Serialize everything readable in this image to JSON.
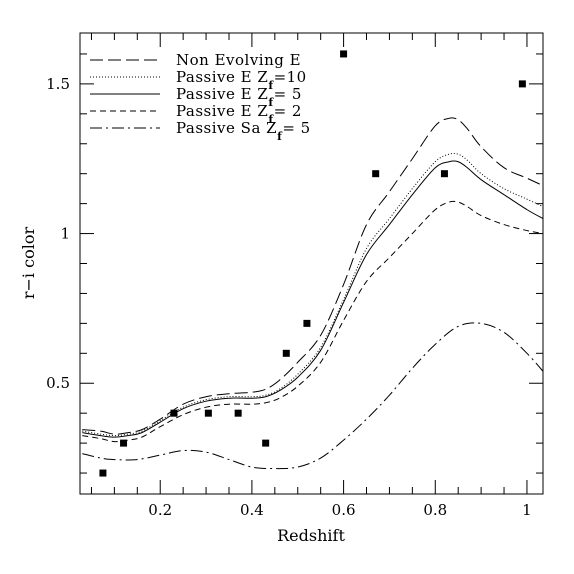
{
  "chart_data": {
    "type": "line",
    "xlabel": "Redshift",
    "ylabel": "r−i color",
    "xlim": [
      0.025,
      1.035
    ],
    "ylim": [
      0.13,
      1.67
    ],
    "x_ticks": [
      0.2,
      0.4,
      0.6,
      0.8,
      1.0
    ],
    "x_tick_labels": [
      "0.2",
      "0.4",
      "0.6",
      "0.8",
      "1"
    ],
    "y_ticks": [
      0.5,
      1.0,
      1.5
    ],
    "y_tick_labels": [
      "0.5",
      "1",
      "1.5"
    ],
    "grid": false,
    "legend_position": "top-left",
    "series": [
      {
        "name": "Non Evolving E",
        "dash": "long-dash",
        "x": [
          0.03,
          0.07,
          0.1,
          0.13,
          0.16,
          0.2,
          0.25,
          0.3,
          0.35,
          0.4,
          0.43,
          0.46,
          0.5,
          0.55,
          0.6,
          0.65,
          0.7,
          0.75,
          0.8,
          0.83,
          0.85,
          0.87,
          0.9,
          0.95,
          1.0,
          1.035
        ],
        "y": [
          0.345,
          0.34,
          0.33,
          0.335,
          0.345,
          0.38,
          0.43,
          0.455,
          0.465,
          0.47,
          0.48,
          0.51,
          0.57,
          0.66,
          0.83,
          1.03,
          1.14,
          1.25,
          1.36,
          1.385,
          1.38,
          1.35,
          1.29,
          1.22,
          1.185,
          1.16
        ]
      },
      {
        "name": "Passive E  Z_f=10",
        "dash": "dotted",
        "x": [
          0.03,
          0.07,
          0.1,
          0.13,
          0.16,
          0.2,
          0.25,
          0.3,
          0.35,
          0.4,
          0.43,
          0.46,
          0.5,
          0.55,
          0.6,
          0.65,
          0.7,
          0.75,
          0.8,
          0.83,
          0.85,
          0.87,
          0.9,
          0.95,
          1.0,
          1.035
        ],
        "y": [
          0.34,
          0.33,
          0.325,
          0.33,
          0.34,
          0.375,
          0.42,
          0.445,
          0.455,
          0.455,
          0.46,
          0.48,
          0.53,
          0.62,
          0.78,
          0.95,
          1.05,
          1.15,
          1.24,
          1.265,
          1.265,
          1.245,
          1.2,
          1.15,
          1.115,
          1.09
        ]
      },
      {
        "name": "Passive E  Z_f= 5",
        "dash": "solid",
        "x": [
          0.03,
          0.07,
          0.1,
          0.13,
          0.16,
          0.2,
          0.25,
          0.3,
          0.35,
          0.4,
          0.43,
          0.46,
          0.5,
          0.55,
          0.6,
          0.65,
          0.7,
          0.75,
          0.8,
          0.83,
          0.85,
          0.87,
          0.9,
          0.95,
          1.0,
          1.035
        ],
        "y": [
          0.335,
          0.325,
          0.32,
          0.325,
          0.335,
          0.37,
          0.415,
          0.44,
          0.45,
          0.45,
          0.455,
          0.475,
          0.52,
          0.61,
          0.77,
          0.93,
          1.03,
          1.13,
          1.22,
          1.24,
          1.24,
          1.22,
          1.18,
          1.13,
          1.08,
          1.05
        ]
      },
      {
        "name": "Passive E  Z_f= 2",
        "dash": "short-dash",
        "x": [
          0.03,
          0.07,
          0.1,
          0.13,
          0.16,
          0.2,
          0.25,
          0.3,
          0.35,
          0.4,
          0.43,
          0.46,
          0.5,
          0.55,
          0.6,
          0.65,
          0.7,
          0.75,
          0.8,
          0.83,
          0.85,
          0.87,
          0.9,
          0.95,
          1.0,
          1.035
        ],
        "y": [
          0.325,
          0.315,
          0.305,
          0.31,
          0.32,
          0.355,
          0.395,
          0.42,
          0.43,
          0.43,
          0.435,
          0.45,
          0.49,
          0.57,
          0.71,
          0.84,
          0.92,
          1.0,
          1.08,
          1.105,
          1.105,
          1.09,
          1.06,
          1.03,
          1.01,
          1.0
        ]
      },
      {
        "name": "Passive Sa  Z_f= 5",
        "dash": "dash-dot",
        "x": [
          0.03,
          0.07,
          0.1,
          0.15,
          0.2,
          0.25,
          0.3,
          0.35,
          0.4,
          0.45,
          0.5,
          0.55,
          0.6,
          0.65,
          0.7,
          0.75,
          0.8,
          0.85,
          0.9,
          0.95,
          1.0,
          1.035
        ],
        "y": [
          0.265,
          0.25,
          0.245,
          0.245,
          0.26,
          0.275,
          0.27,
          0.245,
          0.22,
          0.215,
          0.22,
          0.25,
          0.31,
          0.38,
          0.46,
          0.55,
          0.63,
          0.69,
          0.7,
          0.67,
          0.6,
          0.54
        ]
      }
    ],
    "points": {
      "x": [
        0.075,
        0.12,
        0.23,
        0.305,
        0.37,
        0.43,
        0.475,
        0.52,
        0.6,
        0.67,
        0.82,
        0.99
      ],
      "y": [
        0.2,
        0.3,
        0.4,
        0.4,
        0.4,
        0.3,
        0.6,
        0.7,
        1.6,
        1.2,
        1.2,
        1.5
      ]
    },
    "legend": [
      {
        "text": "Non Evolving E",
        "sub": "",
        "after": "",
        "dash": "long-dash"
      },
      {
        "text": "Passive E  Z",
        "sub": "f",
        "after": "=10",
        "dash": "dotted"
      },
      {
        "text": "Passive E  Z",
        "sub": "f",
        "after": "= 5",
        "dash": "solid"
      },
      {
        "text": "Passive E  Z",
        "sub": "f",
        "after": "= 2",
        "dash": "short-dash"
      },
      {
        "text": "Passive Sa Z",
        "sub": "f",
        "after": "= 5",
        "dash": "dash-dot"
      }
    ]
  }
}
